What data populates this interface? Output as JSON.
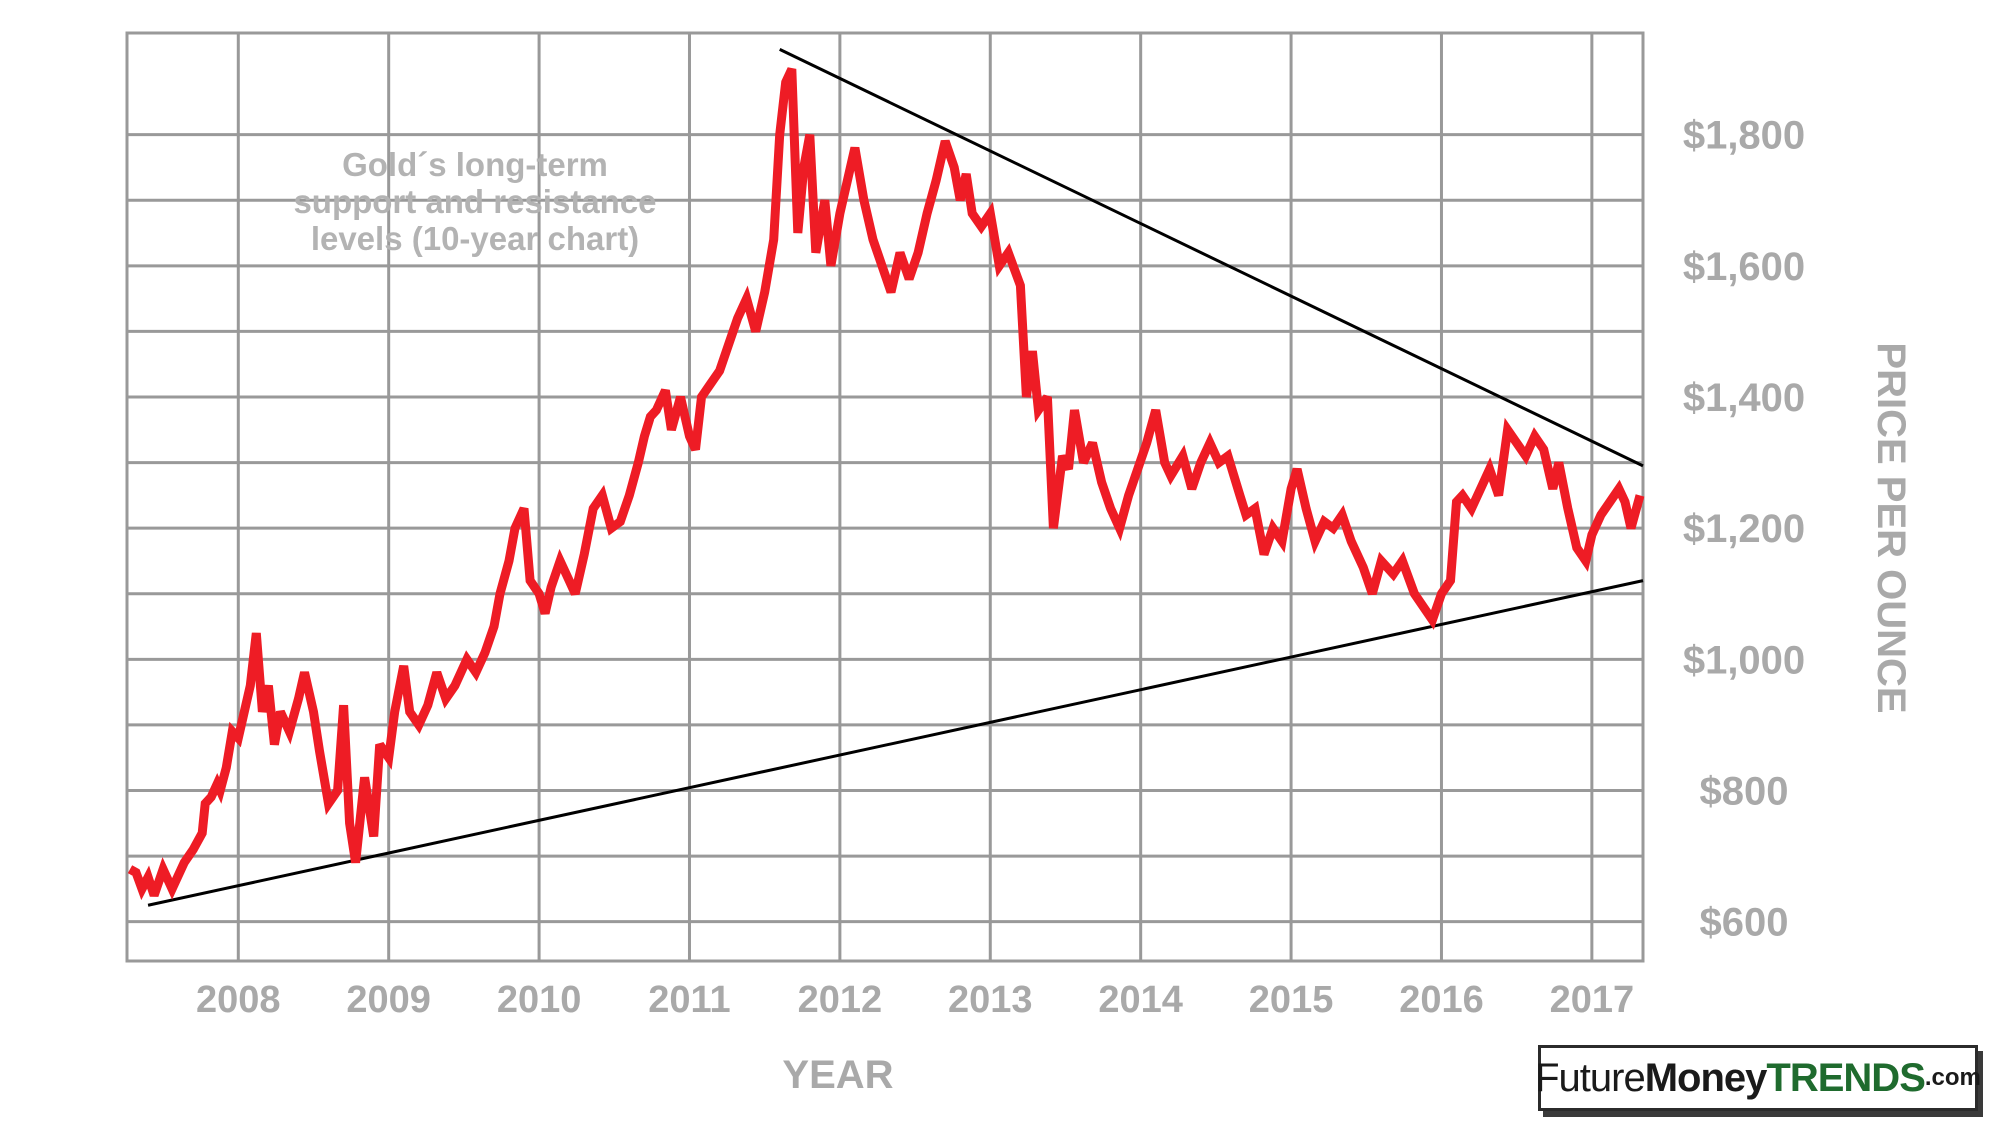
{
  "chart_data": {
    "type": "line",
    "annotation": [
      "Gold´s long-term",
      "support and resistance",
      "levels (10-year chart)"
    ],
    "xlabel": "YEAR",
    "ylabel": "PRICE PER OUNCE",
    "x_ticks": [
      "2008",
      "2009",
      "2010",
      "2011",
      "2012",
      "2013",
      "2014",
      "2015",
      "2016",
      "2017"
    ],
    "y_ticks": [
      "$600",
      "$800",
      "$1,000",
      "$1,200",
      "$1,400",
      "$1,600",
      "$1,800"
    ],
    "y_tick_values": [
      600,
      800,
      1000,
      1200,
      1400,
      1600,
      1800
    ],
    "xlim": [
      2007.28,
      2017.36
    ],
    "ylim": [
      540,
      1955
    ],
    "grid": true,
    "series": [
      {
        "color": "#ee1c25",
        "points": [
          [
            2007.3,
            680
          ],
          [
            2007.34,
            675
          ],
          [
            2007.38,
            650
          ],
          [
            2007.42,
            668
          ],
          [
            2007.46,
            640
          ],
          [
            2007.52,
            680
          ],
          [
            2007.58,
            650
          ],
          [
            2007.66,
            690
          ],
          [
            2007.72,
            710
          ],
          [
            2007.78,
            735
          ],
          [
            2007.8,
            780
          ],
          [
            2007.84,
            790
          ],
          [
            2007.88,
            810
          ],
          [
            2007.9,
            800
          ],
          [
            2007.94,
            835
          ],
          [
            2007.98,
            890
          ],
          [
            2008.02,
            880
          ],
          [
            2008.06,
            920
          ],
          [
            2008.1,
            960
          ],
          [
            2008.14,
            1040
          ],
          [
            2008.18,
            920
          ],
          [
            2008.22,
            960
          ],
          [
            2008.26,
            870
          ],
          [
            2008.3,
            920
          ],
          [
            2008.36,
            890
          ],
          [
            2008.42,
            940
          ],
          [
            2008.46,
            980
          ],
          [
            2008.52,
            920
          ],
          [
            2008.56,
            860
          ],
          [
            2008.62,
            780
          ],
          [
            2008.68,
            800
          ],
          [
            2008.72,
            930
          ],
          [
            2008.76,
            750
          ],
          [
            2008.8,
            690
          ],
          [
            2008.86,
            820
          ],
          [
            2008.92,
            730
          ],
          [
            2008.96,
            870
          ],
          [
            2009.02,
            850
          ],
          [
            2009.06,
            920
          ],
          [
            2009.12,
            990
          ],
          [
            2009.16,
            920
          ],
          [
            2009.22,
            900
          ],
          [
            2009.28,
            930
          ],
          [
            2009.34,
            980
          ],
          [
            2009.4,
            940
          ],
          [
            2009.46,
            960
          ],
          [
            2009.54,
            1000
          ],
          [
            2009.6,
            980
          ],
          [
            2009.66,
            1010
          ],
          [
            2009.72,
            1050
          ],
          [
            2009.76,
            1100
          ],
          [
            2009.82,
            1150
          ],
          [
            2009.86,
            1200
          ],
          [
            2009.92,
            1230
          ],
          [
            2009.96,
            1120
          ],
          [
            2010.02,
            1100
          ],
          [
            2010.06,
            1070
          ],
          [
            2010.1,
            1110
          ],
          [
            2010.16,
            1150
          ],
          [
            2010.22,
            1120
          ],
          [
            2010.26,
            1100
          ],
          [
            2010.32,
            1160
          ],
          [
            2010.38,
            1230
          ],
          [
            2010.44,
            1250
          ],
          [
            2010.5,
            1200
          ],
          [
            2010.56,
            1210
          ],
          [
            2010.62,
            1250
          ],
          [
            2010.68,
            1300
          ],
          [
            2010.72,
            1340
          ],
          [
            2010.76,
            1370
          ],
          [
            2010.8,
            1380
          ],
          [
            2010.86,
            1410
          ],
          [
            2010.9,
            1350
          ],
          [
            2010.96,
            1400
          ],
          [
            2011.02,
            1340
          ],
          [
            2011.06,
            1320
          ],
          [
            2011.1,
            1400
          ],
          [
            2011.16,
            1420
          ],
          [
            2011.22,
            1440
          ],
          [
            2011.28,
            1480
          ],
          [
            2011.34,
            1520
          ],
          [
            2011.4,
            1550
          ],
          [
            2011.46,
            1500
          ],
          [
            2011.52,
            1560
          ],
          [
            2011.58,
            1640
          ],
          [
            2011.62,
            1800
          ],
          [
            2011.66,
            1880
          ],
          [
            2011.7,
            1900
          ],
          [
            2011.74,
            1650
          ],
          [
            2011.78,
            1750
          ],
          [
            2011.82,
            1800
          ],
          [
            2011.86,
            1620
          ],
          [
            2011.92,
            1700
          ],
          [
            2011.96,
            1600
          ],
          [
            2012.02,
            1680
          ],
          [
            2012.08,
            1740
          ],
          [
            2012.12,
            1780
          ],
          [
            2012.18,
            1700
          ],
          [
            2012.24,
            1640
          ],
          [
            2012.3,
            1600
          ],
          [
            2012.36,
            1560
          ],
          [
            2012.42,
            1620
          ],
          [
            2012.48,
            1580
          ],
          [
            2012.54,
            1620
          ],
          [
            2012.6,
            1680
          ],
          [
            2012.66,
            1730
          ],
          [
            2012.72,
            1790
          ],
          [
            2012.78,
            1750
          ],
          [
            2012.82,
            1700
          ],
          [
            2012.86,
            1740
          ],
          [
            2012.9,
            1680
          ],
          [
            2012.96,
            1660
          ],
          [
            2013.02,
            1680
          ],
          [
            2013.08,
            1600
          ],
          [
            2013.14,
            1620
          ],
          [
            2013.22,
            1570
          ],
          [
            2013.26,
            1400
          ],
          [
            2013.3,
            1470
          ],
          [
            2013.34,
            1380
          ],
          [
            2013.4,
            1400
          ],
          [
            2013.44,
            1200
          ],
          [
            2013.5,
            1310
          ],
          [
            2013.54,
            1290
          ],
          [
            2013.58,
            1380
          ],
          [
            2013.64,
            1300
          ],
          [
            2013.7,
            1330
          ],
          [
            2013.76,
            1270
          ],
          [
            2013.82,
            1230
          ],
          [
            2013.88,
            1200
          ],
          [
            2013.94,
            1250
          ],
          [
            2014.0,
            1290
          ],
          [
            2014.06,
            1330
          ],
          [
            2014.12,
            1380
          ],
          [
            2014.18,
            1300
          ],
          [
            2014.22,
            1280
          ],
          [
            2014.3,
            1310
          ],
          [
            2014.36,
            1260
          ],
          [
            2014.42,
            1300
          ],
          [
            2014.48,
            1330
          ],
          [
            2014.54,
            1300
          ],
          [
            2014.6,
            1310
          ],
          [
            2014.68,
            1250
          ],
          [
            2014.72,
            1220
          ],
          [
            2014.78,
            1230
          ],
          [
            2014.84,
            1160
          ],
          [
            2014.9,
            1200
          ],
          [
            2014.96,
            1180
          ],
          [
            2015.02,
            1260
          ],
          [
            2015.06,
            1290
          ],
          [
            2015.12,
            1230
          ],
          [
            2015.18,
            1180
          ],
          [
            2015.24,
            1210
          ],
          [
            2015.3,
            1200
          ],
          [
            2015.36,
            1220
          ],
          [
            2015.42,
            1180
          ],
          [
            2015.5,
            1140
          ],
          [
            2015.56,
            1100
          ],
          [
            2015.62,
            1150
          ],
          [
            2015.7,
            1130
          ],
          [
            2015.76,
            1150
          ],
          [
            2015.84,
            1100
          ],
          [
            2015.9,
            1080
          ],
          [
            2015.96,
            1060
          ],
          [
            2016.02,
            1100
          ],
          [
            2016.08,
            1120
          ],
          [
            2016.12,
            1240
          ],
          [
            2016.16,
            1250
          ],
          [
            2016.22,
            1230
          ],
          [
            2016.28,
            1260
          ],
          [
            2016.34,
            1290
          ],
          [
            2016.4,
            1250
          ],
          [
            2016.46,
            1350
          ],
          [
            2016.52,
            1330
          ],
          [
            2016.58,
            1310
          ],
          [
            2016.64,
            1340
          ],
          [
            2016.7,
            1320
          ],
          [
            2016.76,
            1260
          ],
          [
            2016.8,
            1300
          ],
          [
            2016.86,
            1230
          ],
          [
            2016.92,
            1170
          ],
          [
            2016.98,
            1150
          ],
          [
            2017.02,
            1190
          ],
          [
            2017.08,
            1220
          ],
          [
            2017.14,
            1240
          ],
          [
            2017.2,
            1260
          ],
          [
            2017.24,
            1240
          ],
          [
            2017.28,
            1200
          ],
          [
            2017.34,
            1250
          ]
        ]
      }
    ],
    "trendlines": [
      {
        "from": [
          2007.42,
          625
        ],
        "to": [
          2017.36,
          1120
        ],
        "color": "#000000"
      },
      {
        "from": [
          2011.62,
          1930
        ],
        "to": [
          2017.36,
          1295
        ],
        "color": "#000000"
      }
    ],
    "colors": {
      "grid": "#999999",
      "tick_text": "#a9a9a9",
      "line": "#ee1c25",
      "trend": "#000000"
    }
  },
  "logo": {
    "part1": "Future",
    "part2": "Money",
    "part3": "TRENDS",
    "part4": ".com",
    "colors": {
      "dark": "#1a1a1a",
      "green": "#1f6b2e"
    }
  }
}
